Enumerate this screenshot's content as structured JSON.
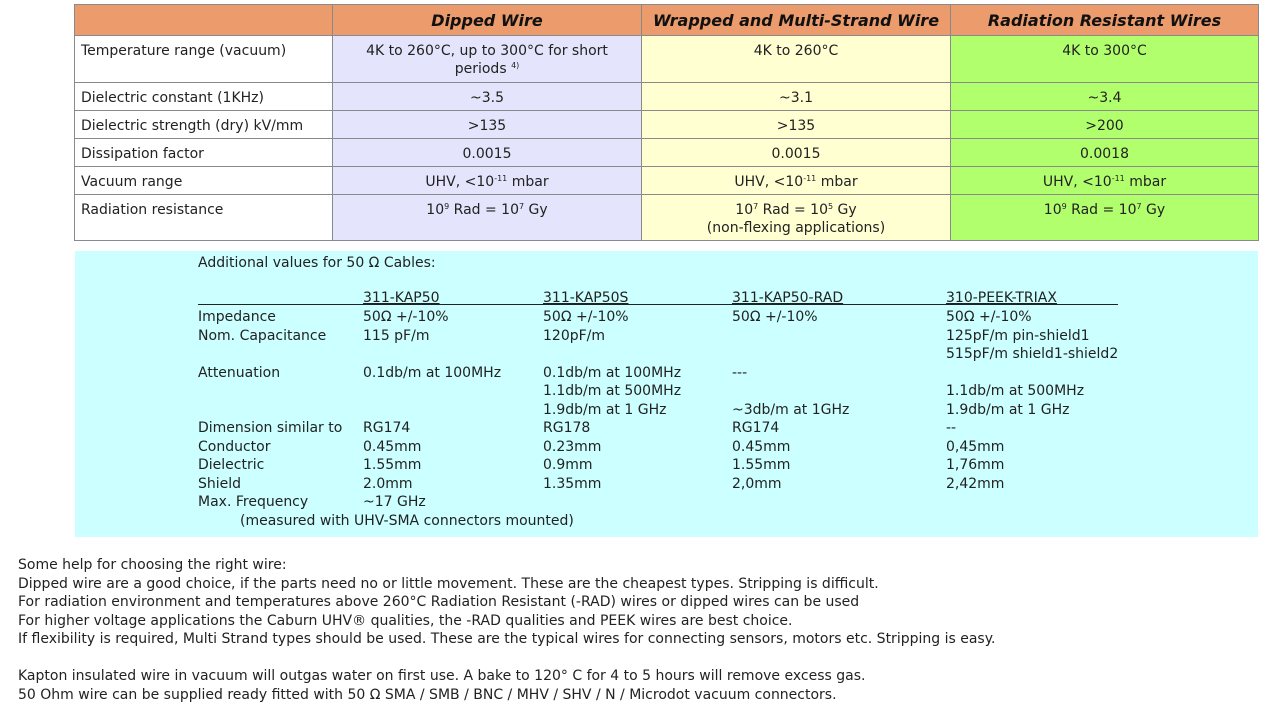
{
  "spec_table": {
    "headers": [
      "Dipped Wire",
      "Wrapped and Multi-Strand Wire",
      "Radiation Resistant Wires"
    ],
    "colors": {
      "header": "#eb9b6c",
      "dipped": "#e4e4fc",
      "wrapped": "#ffffd2",
      "radiation": "#b2ff6e"
    },
    "rows": [
      {
        "label": "Temperature range (vacuum)",
        "cells": [
          [
            {
              "t": "4K to 260°C, up to 300°C for short periods "
            },
            {
              "sup": "4)"
            }
          ],
          [
            {
              "t": "4K to 260°C"
            }
          ],
          [
            {
              "t": "4K to 300°C"
            }
          ]
        ]
      },
      {
        "label": "Dielectric constant (1KHz)",
        "cells": [
          [
            {
              "t": "~3.5"
            }
          ],
          [
            {
              "t": "~3.1"
            }
          ],
          [
            {
              "t": "~3.4"
            }
          ]
        ]
      },
      {
        "label": "Dielectric strength (dry) kV/mm",
        "cells": [
          [
            {
              "t": ">135"
            }
          ],
          [
            {
              "t": ">135"
            }
          ],
          [
            {
              "t": ">200"
            }
          ]
        ]
      },
      {
        "label": "Dissipation factor",
        "cells": [
          [
            {
              "t": "0.0015"
            }
          ],
          [
            {
              "t": "0.0015"
            }
          ],
          [
            {
              "t": "0.0018"
            }
          ]
        ]
      },
      {
        "label": "Vacuum range",
        "cells": [
          [
            {
              "t": "UHV,  <10"
            },
            {
              "sup": "-11"
            },
            {
              "t": " mbar"
            }
          ],
          [
            {
              "t": "UHV,  <10"
            },
            {
              "sup": "-11"
            },
            {
              "t": " mbar"
            }
          ],
          [
            {
              "t": "UHV, <10"
            },
            {
              "sup": "-11"
            },
            {
              "t": " mbar"
            }
          ]
        ]
      },
      {
        "label": "Radiation resistance",
        "cells": [
          [
            {
              "t": "10"
            },
            {
              "sup": "9"
            },
            {
              "t": " Rad = 10"
            },
            {
              "sup": "7"
            },
            {
              "t": " Gy"
            }
          ],
          [
            {
              "t": "10"
            },
            {
              "sup": "7"
            },
            {
              "t": " Rad = 10"
            },
            {
              "sup": "5"
            },
            {
              "t": " Gy"
            },
            {
              "br": true
            },
            {
              "t": "(non-flexing applications)"
            }
          ],
          [
            {
              "t": "10"
            },
            {
              "sup": "9"
            },
            {
              "t": " Rad = 10"
            },
            {
              "sup": "7"
            },
            {
              "t": " Gy"
            }
          ]
        ]
      }
    ]
  },
  "cables": {
    "title": "Additional values for 50 Ω Cables:",
    "background": "#ccffff",
    "columns": [
      "311-KAP50",
      "311-KAP50S",
      "311-KAP50-RAD",
      "310-PEEK-TRIAX"
    ],
    "rows": [
      [
        "Impedance",
        "50Ω +/-10%",
        "50Ω +/-10%",
        "50Ω +/-10%",
        "50Ω +/-10%"
      ],
      [
        "Nom. Capacitance",
        "115 pF/m",
        "120pF/m",
        "",
        "125pF/m pin-shield1"
      ],
      [
        "",
        "",
        "",
        "",
        "515pF/m shield1-shield2"
      ],
      [
        "Attenuation",
        "0.1db/m at 100MHz",
        "0.1db/m at 100MHz",
        "---",
        ""
      ],
      [
        "",
        "",
        "1.1db/m at 500MHz",
        "",
        "1.1db/m at 500MHz"
      ],
      [
        "",
        "",
        "1.9db/m at 1 GHz",
        "~3db/m at 1GHz",
        "1.9db/m at 1 GHz"
      ],
      [
        "Dimension similar to",
        "RG174",
        "RG178",
        "RG174",
        "--"
      ],
      [
        "Conductor",
        "0.45mm",
        "0.23mm",
        "0.45mm",
        "0,45mm"
      ],
      [
        "Dielectric",
        "1.55mm",
        "0.9mm",
        "1.55mm",
        "1,76mm"
      ],
      [
        "Shield",
        "2.0mm",
        "1.35mm",
        "2,0mm",
        "2,42mm"
      ],
      [
        "Max. Frequency",
        "~17 GHz",
        "",
        "",
        ""
      ]
    ],
    "note": "(measured with UHV-SMA connectors mounted)"
  },
  "help": [
    "Some help for choosing the right wire:",
    "Dipped wire are a good choice, if the parts need no or little movement. These are the cheapest types. Stripping is difficult.",
    "For radiation environment and temperatures above 260°C Radiation Resistant (-RAD) wires or dipped wires can be used",
    "For higher voltage applications the Caburn UHV® qualities, the -RAD qualities and PEEK wires are best choice.",
    "If flexibility is required, Multi Strand types should be used. These are the typical wires for connecting sensors, motors etc. Stripping is easy.",
    "",
    "Kapton insulated wire in vacuum will outgas water on first use. A bake to 120° C for 4 to 5 hours will remove excess gas.",
    "50 Ohm wire can be supplied ready fitted with 50 Ω SMA / SMB / BNC / MHV / SHV / N / Microdot vacuum connectors."
  ]
}
